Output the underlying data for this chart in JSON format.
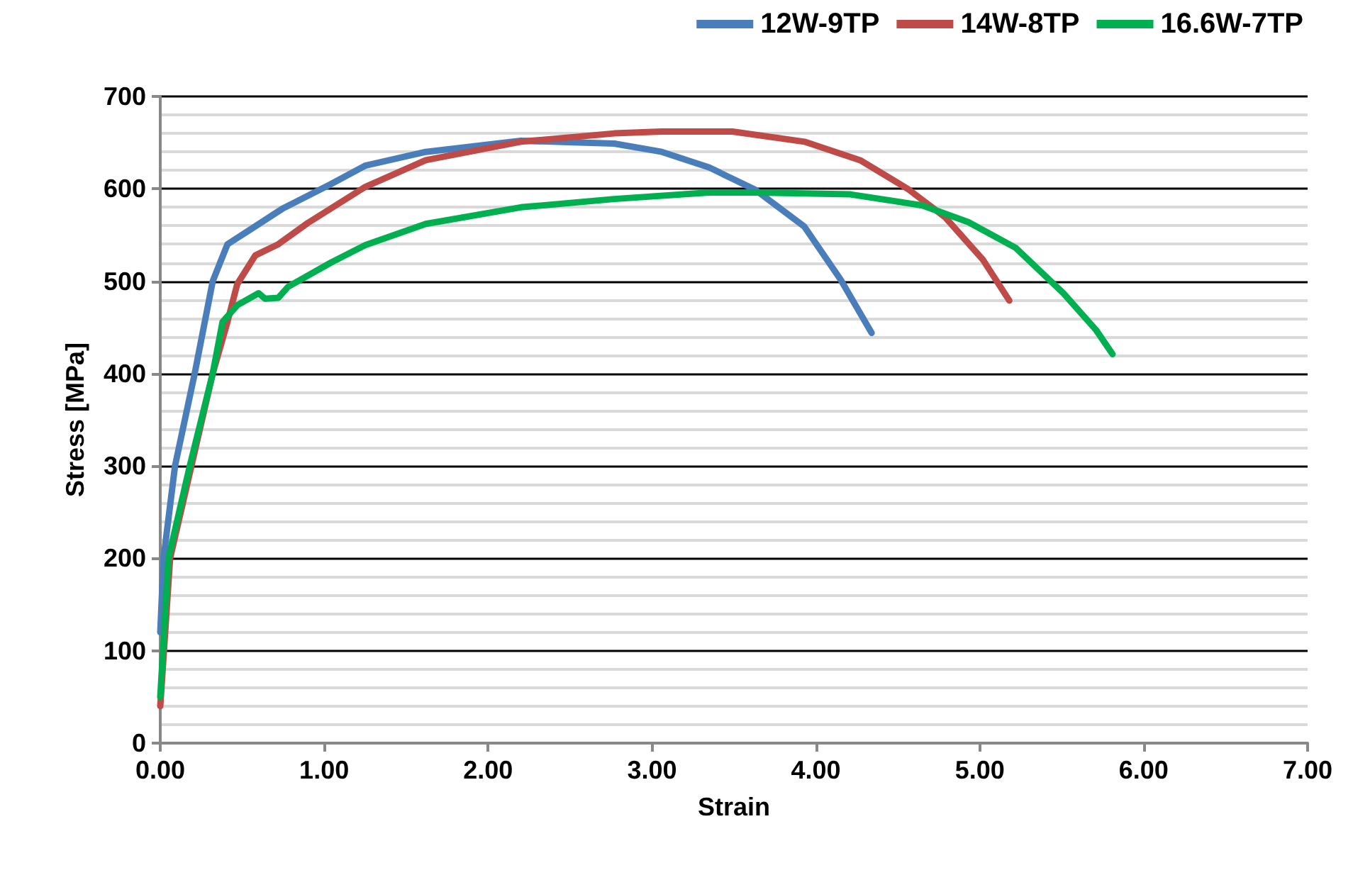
{
  "chart_data": {
    "type": "line",
    "xlabel": "Strain",
    "ylabel": "Stress [MPa]",
    "xlim": [
      0,
      7
    ],
    "ylim": [
      0,
      700
    ],
    "xticks": [
      {
        "value": 0,
        "label": "0.00"
      },
      {
        "value": 1,
        "label": "1.00"
      },
      {
        "value": 2,
        "label": "2.00"
      },
      {
        "value": 3,
        "label": "3.00"
      },
      {
        "value": 4,
        "label": "4.00"
      },
      {
        "value": 5,
        "label": "5.00"
      },
      {
        "value": 6,
        "label": "6.00"
      },
      {
        "value": 7,
        "label": "7.00"
      }
    ],
    "yticks": [
      0,
      100,
      200,
      300,
      400,
      500,
      600,
      700
    ],
    "grid": "y",
    "legend": "top right",
    "marker": "none",
    "line_style": "solid",
    "series": [
      {
        "name": "12W-9TP",
        "color": "#4a7ebb",
        "x": [
          0,
          0.02,
          0.09,
          0.21,
          0.32,
          0.41,
          0.55,
          0.75,
          1.04,
          1.25,
          1.62,
          2.2,
          2.77,
          3.06,
          3.35,
          3.63,
          3.93,
          4.15,
          4.34
        ],
        "values": [
          120,
          200,
          300,
          400,
          500,
          540,
          556,
          579,
          605,
          625,
          640,
          652,
          649,
          640,
          623,
          599,
          559,
          502,
          444
        ]
      },
      {
        "name": "14W-8TP",
        "color": "#be4b48",
        "x": [
          0,
          0.06,
          0.19,
          0.32,
          0.41,
          0.47,
          0.58,
          0.72,
          0.9,
          1.25,
          1.62,
          2.2,
          2.77,
          3.06,
          3.49,
          3.93,
          4.27,
          4.56,
          4.79,
          5.02,
          5.18
        ],
        "values": [
          40,
          200,
          300,
          400,
          456,
          497,
          528,
          540,
          563,
          602,
          631,
          651,
          660,
          662,
          662,
          651,
          631,
          600,
          569,
          523,
          479
        ]
      },
      {
        "name": "16.6W-7TP",
        "color": "#00b050",
        "x": [
          0,
          0.05,
          0.18,
          0.32,
          0.38,
          0.47,
          0.6,
          0.64,
          0.72,
          0.78,
          1.04,
          1.25,
          1.62,
          2.2,
          2.77,
          3.35,
          3.63,
          4.21,
          4.65,
          4.93,
          5.22,
          5.51,
          5.71,
          5.81
        ],
        "values": [
          50,
          200,
          300,
          400,
          456,
          474,
          487,
          481,
          482,
          494,
          520,
          539,
          562,
          580,
          589,
          596,
          596,
          594,
          582,
          564,
          536,
          487,
          447,
          421
        ]
      }
    ]
  }
}
